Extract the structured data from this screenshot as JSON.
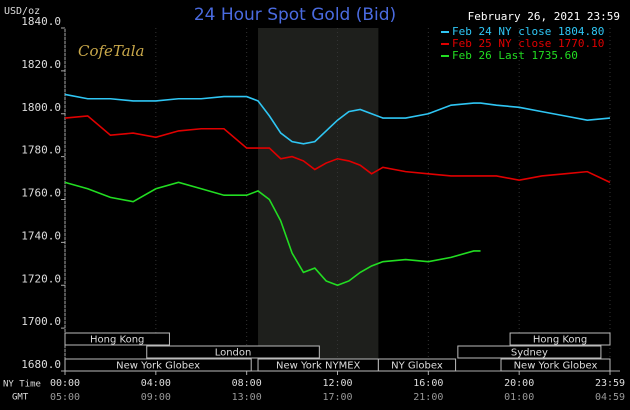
{
  "chart_data": {
    "type": "line",
    "title": "24 Hour Spot Gold (Bid)",
    "subtitle": "February 26, 2021 23:59",
    "y_label": "USD/oz",
    "logo": "CofeTala",
    "x_row_labels": [
      "NY Time",
      "GMT"
    ],
    "x": [
      0,
      1,
      2,
      3,
      4,
      5,
      6,
      7,
      8,
      8.5,
      9,
      9.5,
      10,
      10.5,
      11,
      11.5,
      12,
      12.5,
      13,
      13.5,
      14,
      15,
      16,
      17,
      18,
      18.3,
      19,
      20,
      21,
      22,
      23,
      24
    ],
    "series": [
      {
        "name": "Feb 24 NY close 1804.80",
        "color": "#2fc6f4",
        "values": [
          1809,
          1807,
          1807,
          1806,
          1806,
          1807,
          1807,
          1808,
          1808,
          1806,
          1799,
          1791,
          1787,
          1786,
          1787,
          1792,
          1797,
          1801,
          1802,
          1800,
          1798,
          1798,
          1800,
          1804,
          1805,
          1805,
          1804,
          1803,
          1801,
          1799,
          1797,
          1798
        ]
      },
      {
        "name": "Feb 25 NY close 1770.10",
        "color": "#e00000",
        "values": [
          1798,
          1799,
          1790,
          1791,
          1789,
          1792,
          1793,
          1793,
          1784,
          1784,
          1784,
          1779,
          1780,
          1778,
          1774,
          1777,
          1779,
          1778,
          1776,
          1772,
          1775,
          1773,
          1772,
          1771,
          1771,
          1771,
          1771,
          1769,
          1771,
          1772,
          1773,
          1768
        ]
      },
      {
        "name": "Feb 26 Last 1735.60",
        "color": "#22dd22",
        "values": [
          1768,
          1765,
          1761,
          1759,
          1765,
          1768,
          1765,
          1762,
          1762,
          1764,
          1760,
          1750,
          1735,
          1726,
          1728,
          1722,
          1720,
          1722,
          1726,
          1729,
          1731,
          1732,
          1731,
          1733,
          1736,
          1736,
          null,
          null,
          null,
          null,
          null,
          null
        ]
      }
    ],
    "xlim": [
      0,
      24
    ],
    "ylim": [
      1680,
      1840
    ],
    "yticks": [
      {
        "value": 1680,
        "label": "1680.0"
      },
      {
        "value": 1700,
        "label": "1700.0"
      },
      {
        "value": 1720,
        "label": "1720.0"
      },
      {
        "value": 1740,
        "label": "1740.0"
      },
      {
        "value": 1760,
        "label": "1760.0"
      },
      {
        "value": 1780,
        "label": "1780.0"
      },
      {
        "value": 1800,
        "label": "1800.0"
      },
      {
        "value": 1820,
        "label": "1820.0"
      },
      {
        "value": 1840,
        "label": "1840.0"
      }
    ],
    "xticks": [
      {
        "value": 0,
        "label": "00:00"
      },
      {
        "value": 4,
        "label": "04:00"
      },
      {
        "value": 8,
        "label": "08:00"
      },
      {
        "value": 12,
        "label": "12:00"
      },
      {
        "value": 16,
        "label": "16:00"
      },
      {
        "value": 20,
        "label": "20:00"
      },
      {
        "value": 24,
        "label": "23:59"
      }
    ],
    "gmt_xticks": [
      {
        "value": 0,
        "label": "05:00"
      },
      {
        "value": 4,
        "label": "09:00"
      },
      {
        "value": 8,
        "label": "13:00"
      },
      {
        "value": 12,
        "label": "17:00"
      },
      {
        "value": 16,
        "label": "21:00"
      },
      {
        "value": 20,
        "label": "01:00"
      },
      {
        "value": 24,
        "label": "04:59"
      }
    ],
    "shaded_region": [
      8.5,
      13.8
    ],
    "sessions": [
      {
        "label": "Hong Kong",
        "start": 0,
        "end": 4.6,
        "row": 0
      },
      {
        "label": "Hong Kong",
        "start": 19.6,
        "end": 24,
        "row": 0
      },
      {
        "label": "London",
        "start": 3.6,
        "end": 11.2,
        "row": 1
      },
      {
        "label": "Sydney",
        "start": 17.3,
        "end": 23.6,
        "row": 1
      },
      {
        "label": "New York Globex",
        "start": 0,
        "end": 8.2,
        "row": 2
      },
      {
        "label": "New York NYMEX",
        "start": 8.5,
        "end": 13.8,
        "row": 2
      },
      {
        "label": "NY Globex",
        "start": 13.8,
        "end": 17.2,
        "row": 2
      },
      {
        "label": "New York Globex",
        "start": 19.2,
        "end": 24,
        "row": 2
      }
    ]
  }
}
